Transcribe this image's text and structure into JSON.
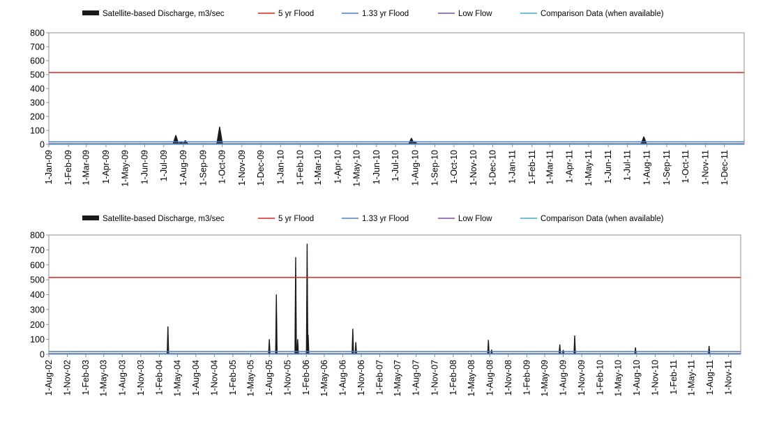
{
  "chart_data": [
    {
      "type": "area",
      "legend": [
        {
          "label": "Satellite-based Discharge, m3/sec",
          "color": "#1a1a1a",
          "kind": "area"
        },
        {
          "label": "5 yr Flood",
          "color": "#e0201c",
          "kind": "line"
        },
        {
          "label": "1.33 yr Flood",
          "color": "#4a7fc1",
          "kind": "line"
        },
        {
          "label": "Low Flow",
          "color": "#7b4fa0",
          "kind": "line"
        },
        {
          "label": "Comparison Data (when available)",
          "color": "#3fa9c9",
          "kind": "line"
        }
      ],
      "legend_position": "top",
      "ylim": [
        0,
        800
      ],
      "yticks": [
        "800",
        "700",
        "600",
        "500",
        "400",
        "300",
        "200",
        "100",
        "0"
      ],
      "xlim": [
        "2009-01-01",
        "2012-01-01"
      ],
      "xticks": [
        "1-Jan-09",
        "1-Feb-09",
        "1-Mar-09",
        "1-Apr-09",
        "1-May-09",
        "1-Jun-09",
        "1-Jul-09",
        "1-Aug-09",
        "1-Sep-09",
        "1-Oct-09",
        "1-Nov-09",
        "1-Dec-09",
        "1-Jan-10",
        "1-Feb-10",
        "1-Mar-10",
        "1-Apr-10",
        "1-May-10",
        "1-Jun-10",
        "1-Jul-10",
        "1-Aug-10",
        "1-Sep-10",
        "1-Oct-10",
        "1-Nov-10",
        "1-Dec-10",
        "1-Jan-11",
        "1-Feb-11",
        "1-Mar-11",
        "1-Apr-11",
        "1-May-11",
        "1-Jun-11",
        "1-Jul-11",
        "1-Aug-11",
        "1-Sep-11",
        "1-Oct-11",
        "1-Nov-11",
        "1-Dec-11"
      ],
      "thresholds": {
        "five_yr_flood": 515,
        "one33_yr_flood": 18,
        "low_flow": 5
      },
      "discharge_peaks": [
        {
          "date": "2009-07-20",
          "value": 65
        },
        {
          "date": "2009-07-28",
          "value": 20
        },
        {
          "date": "2009-08-04",
          "value": 28
        },
        {
          "date": "2009-09-27",
          "value": 125
        },
        {
          "date": "2010-07-26",
          "value": 45
        },
        {
          "date": "2010-07-31",
          "value": 22
        },
        {
          "date": "2011-07-27",
          "value": 55
        }
      ]
    },
    {
      "type": "area",
      "legend": [
        {
          "label": "Satellite-based Discharge, m3/sec",
          "color": "#1a1a1a",
          "kind": "area"
        },
        {
          "label": "5 yr Flood",
          "color": "#e0201c",
          "kind": "line"
        },
        {
          "label": "1.33 yr Flood",
          "color": "#4a7fc1",
          "kind": "line"
        },
        {
          "label": "Low Flow",
          "color": "#7b4fa0",
          "kind": "line"
        },
        {
          "label": "Comparison Data (when available)",
          "color": "#3fa9c9",
          "kind": "line"
        }
      ],
      "legend_position": "top",
      "ylim": [
        0,
        800
      ],
      "yticks": [
        "800",
        "700",
        "600",
        "500",
        "400",
        "300",
        "200",
        "100",
        "0"
      ],
      "xlim": [
        "2002-08-01",
        "2011-12-31"
      ],
      "xticks": [
        "1-Aug-02",
        "1-Nov-02",
        "1-Feb-03",
        "1-May-03",
        "1-Aug-03",
        "1-Nov-03",
        "1-Feb-04",
        "1-May-04",
        "1-Aug-04",
        "1-Nov-04",
        "1-Feb-05",
        "1-May-05",
        "1-Aug-05",
        "1-Nov-05",
        "1-Feb-06",
        "1-May-06",
        "1-Aug-06",
        "1-Nov-06",
        "1-Feb-07",
        "1-May-07",
        "1-Aug-07",
        "1-Nov-07",
        "1-Feb-08",
        "1-May-08",
        "1-Aug-08",
        "1-Nov-08",
        "1-Feb-09",
        "1-May-09",
        "1-Aug-09",
        "1-Nov-09",
        "1-Feb-10",
        "1-May-10",
        "1-Aug-10",
        "1-Nov-10",
        "1-Feb-11",
        "1-May-11",
        "1-Aug-11",
        "1-Nov-11"
      ],
      "thresholds": {
        "five_yr_flood": 515,
        "one33_yr_flood": 18,
        "low_flow": 5
      },
      "discharge_peaks": [
        {
          "date": "2004-03-15",
          "value": 185
        },
        {
          "date": "2005-08-01",
          "value": 100
        },
        {
          "date": "2005-09-05",
          "value": 400
        },
        {
          "date": "2005-12-10",
          "value": 650
        },
        {
          "date": "2005-12-20",
          "value": 100
        },
        {
          "date": "2006-02-05",
          "value": 740
        },
        {
          "date": "2006-02-10",
          "value": 130
        },
        {
          "date": "2006-09-20",
          "value": 170
        },
        {
          "date": "2006-10-05",
          "value": 80
        },
        {
          "date": "2008-07-25",
          "value": 95
        },
        {
          "date": "2008-08-10",
          "value": 30
        },
        {
          "date": "2009-07-15",
          "value": 65
        },
        {
          "date": "2009-08-01",
          "value": 28
        },
        {
          "date": "2009-09-27",
          "value": 125
        },
        {
          "date": "2010-07-26",
          "value": 45
        },
        {
          "date": "2011-07-27",
          "value": 55
        }
      ]
    }
  ]
}
